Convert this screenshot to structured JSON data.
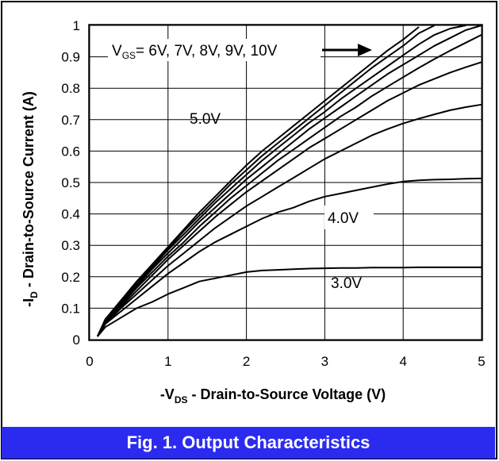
{
  "caption": "Fig. 1.  Output Characteristics",
  "chart_data": {
    "type": "line",
    "xlabel_main": "-V",
    "xlabel_sub": "DS",
    "xlabel_rest": " - Drain-to-Source Voltage (V)",
    "ylabel_main": "-I",
    "ylabel_sub": "D",
    "ylabel_rest": " - Drain-to-Source Current (A)",
    "xlim": [
      0,
      5
    ],
    "ylim": [
      0,
      1
    ],
    "xticks": [
      "0",
      "1",
      "2",
      "3",
      "4",
      "5"
    ],
    "yticks": [
      "0",
      "0.1",
      "0.2",
      "0.3",
      "0.4",
      "0.5",
      "0.6",
      "0.7",
      "0.8",
      "0.9",
      "1"
    ],
    "grid": true,
    "legend_annotation": {
      "main": "V",
      "sub": "GS",
      "rest": "= 6V, 7V, 8V, 9V, 10V"
    },
    "annotations": [
      "5.0V",
      "4.0V",
      "3.0V"
    ],
    "series": [
      {
        "x": [
          0.1,
          0.2,
          0.4,
          0.6,
          0.8,
          1.0,
          1.2,
          1.4,
          1.6,
          1.8,
          2.0,
          2.2,
          2.4,
          2.6,
          2.8,
          3.0,
          3.2,
          3.4,
          3.6,
          3.8,
          4.0,
          4.2,
          4.4,
          4.6,
          4.8,
          5.0
        ],
        "values": [
          0.01,
          0.04,
          0.07,
          0.1,
          0.12,
          0.145,
          0.165,
          0.185,
          0.195,
          0.205,
          0.215,
          0.22,
          0.222,
          0.224,
          0.226,
          0.227,
          0.228,
          0.228,
          0.229,
          0.229,
          0.229,
          0.23,
          0.23,
          0.23,
          0.23,
          0.23
        ]
      },
      {
        "x": [
          0.1,
          0.2,
          0.4,
          0.6,
          0.8,
          1.0,
          1.2,
          1.4,
          1.6,
          1.8,
          2.0,
          2.2,
          2.4,
          2.6,
          2.8,
          3.0,
          3.2,
          3.4,
          3.6,
          3.8,
          4.0,
          4.2,
          4.4,
          4.6,
          4.8,
          5.0
        ],
        "values": [
          0.01,
          0.05,
          0.09,
          0.13,
          0.17,
          0.21,
          0.245,
          0.28,
          0.31,
          0.335,
          0.36,
          0.385,
          0.405,
          0.42,
          0.44,
          0.455,
          0.465,
          0.475,
          0.485,
          0.495,
          0.503,
          0.507,
          0.509,
          0.51,
          0.512,
          0.513
        ]
      },
      {
        "x": [
          0.1,
          0.2,
          0.4,
          0.6,
          0.8,
          1.0,
          1.2,
          1.4,
          1.6,
          1.8,
          2.0,
          2.2,
          2.4,
          2.6,
          2.8,
          3.0,
          3.2,
          3.4,
          3.6,
          3.8,
          4.0,
          4.2,
          4.4,
          4.6,
          4.8,
          5.0
        ],
        "values": [
          0.01,
          0.05,
          0.1,
          0.145,
          0.19,
          0.235,
          0.275,
          0.315,
          0.355,
          0.39,
          0.425,
          0.455,
          0.485,
          0.515,
          0.545,
          0.575,
          0.6,
          0.625,
          0.65,
          0.67,
          0.688,
          0.703,
          0.717,
          0.73,
          0.74,
          0.748
        ]
      },
      {
        "x": [
          0.1,
          0.2,
          0.4,
          0.6,
          0.8,
          1.0,
          1.2,
          1.4,
          1.6,
          1.8,
          2.0,
          2.2,
          2.4,
          2.6,
          2.8,
          3.0,
          3.2,
          3.4,
          3.6,
          3.8,
          4.0,
          4.2,
          4.4,
          4.6,
          4.8,
          5.0
        ],
        "values": [
          0.01,
          0.055,
          0.105,
          0.155,
          0.205,
          0.255,
          0.3,
          0.345,
          0.39,
          0.43,
          0.47,
          0.505,
          0.54,
          0.575,
          0.61,
          0.64,
          0.67,
          0.7,
          0.73,
          0.76,
          0.785,
          0.81,
          0.83,
          0.85,
          0.867,
          0.883
        ]
      },
      {
        "x": [
          0.1,
          0.2,
          0.4,
          0.6,
          0.8,
          1.0,
          1.2,
          1.4,
          1.6,
          1.8,
          2.0,
          2.2,
          2.4,
          2.6,
          2.8,
          3.0,
          3.2,
          3.4,
          3.6,
          3.8,
          4.0,
          4.2,
          4.4,
          4.6,
          4.8,
          5.0
        ],
        "values": [
          0.01,
          0.06,
          0.11,
          0.165,
          0.215,
          0.265,
          0.31,
          0.36,
          0.405,
          0.45,
          0.49,
          0.53,
          0.57,
          0.605,
          0.64,
          0.675,
          0.71,
          0.74,
          0.775,
          0.805,
          0.835,
          0.865,
          0.893,
          0.92,
          0.945,
          0.97
        ]
      },
      {
        "x": [
          0.1,
          0.2,
          0.4,
          0.6,
          0.8,
          1.0,
          1.2,
          1.4,
          1.6,
          1.8,
          2.0,
          2.2,
          2.4,
          2.6,
          2.8,
          3.0,
          3.2,
          3.4,
          3.6,
          3.8,
          4.0,
          4.2,
          4.4,
          4.6,
          4.8,
          5.0
        ],
        "values": [
          0.01,
          0.06,
          0.115,
          0.17,
          0.225,
          0.275,
          0.325,
          0.375,
          0.42,
          0.465,
          0.51,
          0.55,
          0.59,
          0.63,
          0.67,
          0.705,
          0.74,
          0.775,
          0.81,
          0.845,
          0.875,
          0.905,
          0.935,
          0.96,
          0.985,
          1.005
        ]
      },
      {
        "x": [
          0.1,
          0.2,
          0.4,
          0.6,
          0.8,
          1.0,
          1.2,
          1.4,
          1.6,
          1.8,
          2.0,
          2.2,
          2.4,
          2.6,
          2.8,
          3.0,
          3.2,
          3.4,
          3.6,
          3.8,
          4.0,
          4.2,
          4.4,
          4.6,
          4.8
        ],
        "values": [
          0.01,
          0.06,
          0.12,
          0.175,
          0.23,
          0.285,
          0.335,
          0.385,
          0.435,
          0.48,
          0.525,
          0.57,
          0.61,
          0.65,
          0.69,
          0.725,
          0.765,
          0.8,
          0.835,
          0.87,
          0.905,
          0.94,
          0.97,
          0.99,
          1.0
        ]
      },
      {
        "x": [
          0.1,
          0.2,
          0.4,
          0.6,
          0.8,
          1.0,
          1.2,
          1.4,
          1.6,
          1.8,
          2.0,
          2.2,
          2.4,
          2.6,
          2.8,
          3.0,
          3.2,
          3.4,
          3.6,
          3.8,
          4.0,
          4.2,
          4.4
        ],
        "values": [
          0.01,
          0.065,
          0.12,
          0.18,
          0.235,
          0.29,
          0.345,
          0.395,
          0.445,
          0.495,
          0.54,
          0.585,
          0.625,
          0.665,
          0.705,
          0.745,
          0.785,
          0.825,
          0.865,
          0.9,
          0.935,
          0.975,
          1.0
        ]
      },
      {
        "x": [
          0.1,
          0.2,
          0.4,
          0.6,
          0.8,
          1.0,
          1.2,
          1.4,
          1.6,
          1.8,
          2.0,
          2.2,
          2.4,
          2.6,
          2.8,
          3.0,
          3.2,
          3.4,
          3.6,
          3.8,
          4.0,
          4.2
        ],
        "values": [
          0.01,
          0.065,
          0.125,
          0.185,
          0.24,
          0.295,
          0.35,
          0.405,
          0.455,
          0.505,
          0.555,
          0.6,
          0.64,
          0.68,
          0.72,
          0.76,
          0.8,
          0.84,
          0.88,
          0.92,
          0.955,
          0.995
        ]
      }
    ],
    "line_color": "#000000",
    "caption_color": "#2b2bef"
  }
}
